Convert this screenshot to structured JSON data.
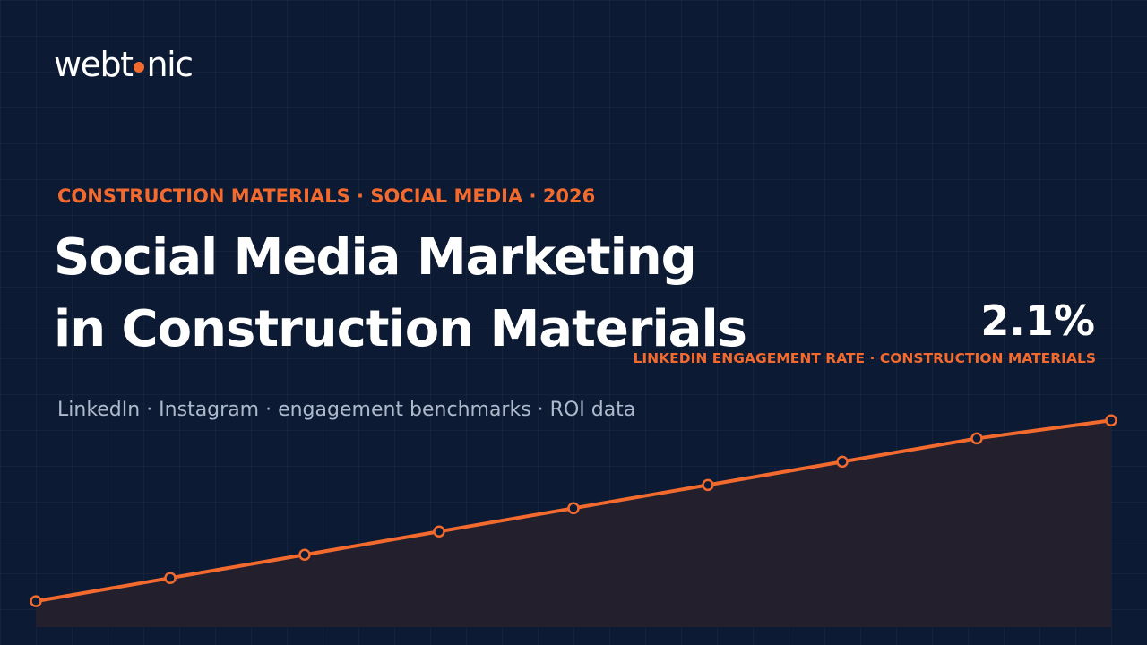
{
  "brand": {
    "name_before_dot": "webt",
    "name_after_dot": "nic",
    "accent_color": "#f26a2e",
    "background_color": "#0c1a33"
  },
  "hero": {
    "eyebrow": "CONSTRUCTION MATERIALS · SOCIAL MEDIA · 2026",
    "title_line_1": "Social Media Marketing",
    "title_line_2": "in Construction Materials",
    "subtitle": "LinkedIn · Instagram · engagement benchmarks · ROI data"
  },
  "stat": {
    "value": "2.1%",
    "label": "LINKEDIN ENGAGEMENT RATE · CONSTRUCTION MATERIALS"
  },
  "trend": {
    "type": "line",
    "points": [
      0,
      1,
      2,
      3,
      4,
      5,
      6,
      7,
      8
    ],
    "values": [
      1.0,
      1.9,
      2.8,
      3.7,
      4.6,
      5.5,
      6.4,
      7.3,
      8.0
    ],
    "ylim": [
      0,
      10.4
    ],
    "line_color": "#f26a2e",
    "fill_color": "#241f2d"
  }
}
